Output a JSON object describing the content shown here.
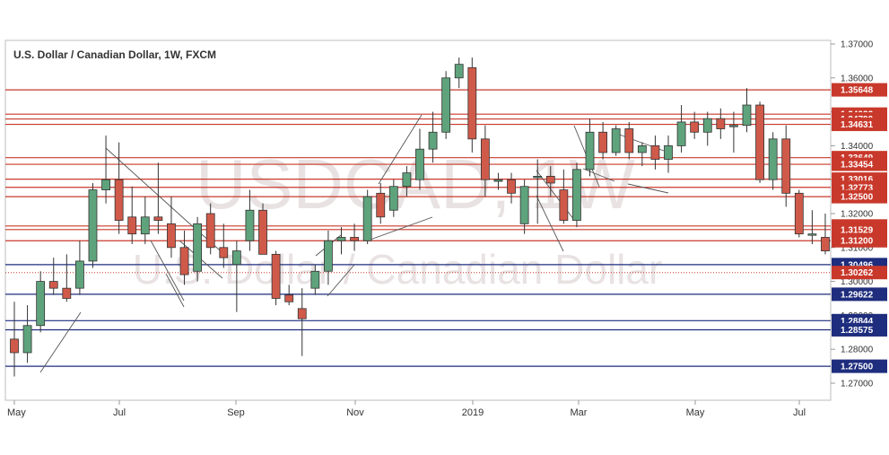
{
  "chart_data": {
    "type": "candlestick",
    "title": "U.S. Dollar / Canadian Dollar, 1W, FXCM",
    "watermark": {
      "symbol": "USDCAD, 1W",
      "name": "U.S. Dollar / Canadian Dollar"
    },
    "x_ticks": [
      "May",
      "Jul",
      "Sep",
      "Nov",
      "2019",
      "Mar",
      "May",
      "Jul"
    ],
    "y_ticks": [
      "1.37000",
      "1.36000",
      "1.35000",
      "1.34000",
      "1.33000",
      "1.32000",
      "1.31000",
      "1.30000",
      "1.29000",
      "1.28000",
      "1.27000"
    ],
    "ylim": [
      1.265,
      1.372
    ],
    "grid": false,
    "colors": {
      "up": "#5fa37c",
      "down": "#d05a4a",
      "resistance": "#c8392b",
      "support": "#1e2d7d",
      "trendline": "#555555"
    },
    "resistance_levels": [
      {
        "value": 1.35648,
        "label": "1.35648"
      },
      {
        "value": 1.34932,
        "label": "1.34932"
      },
      {
        "value": 1.3479,
        "label": "1.34790"
      },
      {
        "value": 1.34631,
        "label": "1.34631"
      },
      {
        "value": 1.33649,
        "label": "1.33649"
      },
      {
        "value": 1.33454,
        "label": "1.33454"
      },
      {
        "value": 1.33016,
        "label": "1.33016"
      },
      {
        "value": 1.32773,
        "label": "1.32773"
      },
      {
        "value": 1.325,
        "label": "1.32500"
      },
      {
        "value": 1.31635,
        "label": "1.31635"
      },
      {
        "value": 1.31529,
        "label": "1.31529"
      },
      {
        "value": 1.312,
        "label": "1.31200"
      }
    ],
    "support_levels": [
      {
        "value": 1.30496,
        "label": "1.30496"
      },
      {
        "value": 1.29622,
        "label": "1.29622"
      },
      {
        "value": 1.28844,
        "label": "1.28844"
      },
      {
        "value": 1.28575,
        "label": "1.28575"
      },
      {
        "value": 1.275,
        "label": "1.27500"
      }
    ],
    "current_price": {
      "value": 1.30262,
      "label": "1.30262"
    },
    "candles": [
      {
        "o": 1.283,
        "h": 1.294,
        "l": 1.272,
        "c": 1.279
      },
      {
        "o": 1.279,
        "h": 1.293,
        "l": 1.276,
        "c": 1.287
      },
      {
        "o": 1.287,
        "h": 1.303,
        "l": 1.285,
        "c": 1.3
      },
      {
        "o": 1.3,
        "h": 1.307,
        "l": 1.296,
        "c": 1.298
      },
      {
        "o": 1.298,
        "h": 1.308,
        "l": 1.294,
        "c": 1.295
      },
      {
        "o": 1.298,
        "h": 1.312,
        "l": 1.296,
        "c": 1.306
      },
      {
        "o": 1.306,
        "h": 1.329,
        "l": 1.304,
        "c": 1.327
      },
      {
        "o": 1.327,
        "h": 1.343,
        "l": 1.323,
        "c": 1.33
      },
      {
        "o": 1.33,
        "h": 1.341,
        "l": 1.314,
        "c": 1.318
      },
      {
        "o": 1.319,
        "h": 1.328,
        "l": 1.311,
        "c": 1.314
      },
      {
        "o": 1.314,
        "h": 1.325,
        "l": 1.311,
        "c": 1.319
      },
      {
        "o": 1.319,
        "h": 1.335,
        "l": 1.314,
        "c": 1.318
      },
      {
        "o": 1.317,
        "h": 1.325,
        "l": 1.307,
        "c": 1.31
      },
      {
        "o": 1.31,
        "h": 1.315,
        "l": 1.299,
        "c": 1.302
      },
      {
        "o": 1.303,
        "h": 1.319,
        "l": 1.3,
        "c": 1.317
      },
      {
        "o": 1.32,
        "h": 1.323,
        "l": 1.308,
        "c": 1.31
      },
      {
        "o": 1.31,
        "h": 1.317,
        "l": 1.304,
        "c": 1.307
      },
      {
        "o": 1.305,
        "h": 1.312,
        "l": 1.291,
        "c": 1.309
      },
      {
        "o": 1.312,
        "h": 1.327,
        "l": 1.309,
        "c": 1.321
      },
      {
        "o": 1.321,
        "h": 1.323,
        "l": 1.309,
        "c": 1.308
      },
      {
        "o": 1.308,
        "h": 1.309,
        "l": 1.293,
        "c": 1.295
      },
      {
        "o": 1.296,
        "h": 1.299,
        "l": 1.293,
        "c": 1.294
      },
      {
        "o": 1.292,
        "h": 1.298,
        "l": 1.278,
        "c": 1.289
      },
      {
        "o": 1.298,
        "h": 1.305,
        "l": 1.296,
        "c": 1.303
      },
      {
        "o": 1.303,
        "h": 1.315,
        "l": 1.299,
        "c": 1.312
      },
      {
        "o": 1.312,
        "h": 1.316,
        "l": 1.308,
        "c": 1.313
      },
      {
        "o": 1.313,
        "h": 1.317,
        "l": 1.309,
        "c": 1.312
      },
      {
        "o": 1.312,
        "h": 1.327,
        "l": 1.311,
        "c": 1.325
      },
      {
        "o": 1.326,
        "h": 1.329,
        "l": 1.317,
        "c": 1.319
      },
      {
        "o": 1.321,
        "h": 1.33,
        "l": 1.319,
        "c": 1.328
      },
      {
        "o": 1.328,
        "h": 1.334,
        "l": 1.325,
        "c": 1.332
      },
      {
        "o": 1.33,
        "h": 1.345,
        "l": 1.327,
        "c": 1.339
      },
      {
        "o": 1.339,
        "h": 1.35,
        "l": 1.335,
        "c": 1.344
      },
      {
        "o": 1.344,
        "h": 1.362,
        "l": 1.342,
        "c": 1.36
      },
      {
        "o": 1.36,
        "h": 1.366,
        "l": 1.357,
        "c": 1.364
      },
      {
        "o": 1.363,
        "h": 1.366,
        "l": 1.338,
        "c": 1.342
      },
      {
        "o": 1.342,
        "h": 1.346,
        "l": 1.325,
        "c": 1.33
      },
      {
        "o": 1.3295,
        "h": 1.332,
        "l": 1.327,
        "c": 1.33
      },
      {
        "o": 1.33,
        "h": 1.332,
        "l": 1.323,
        "c": 1.326
      },
      {
        "o": 1.317,
        "h": 1.33,
        "l": 1.314,
        "c": 1.328
      },
      {
        "o": 1.331,
        "h": 1.336,
        "l": 1.317,
        "c": 1.331
      },
      {
        "o": 1.331,
        "h": 1.334,
        "l": 1.325,
        "c": 1.329
      },
      {
        "o": 1.327,
        "h": 1.333,
        "l": 1.317,
        "c": 1.318
      },
      {
        "o": 1.318,
        "h": 1.335,
        "l": 1.316,
        "c": 1.333
      },
      {
        "o": 1.333,
        "h": 1.348,
        "l": 1.331,
        "c": 1.344
      },
      {
        "o": 1.344,
        "h": 1.347,
        "l": 1.336,
        "c": 1.338
      },
      {
        "o": 1.338,
        "h": 1.346,
        "l": 1.337,
        "c": 1.345
      },
      {
        "o": 1.345,
        "h": 1.347,
        "l": 1.336,
        "c": 1.338
      },
      {
        "o": 1.338,
        "h": 1.341,
        "l": 1.334,
        "c": 1.34
      },
      {
        "o": 1.34,
        "h": 1.343,
        "l": 1.333,
        "c": 1.336
      },
      {
        "o": 1.336,
        "h": 1.343,
        "l": 1.332,
        "c": 1.34
      },
      {
        "o": 1.34,
        "h": 1.352,
        "l": 1.338,
        "c": 1.347
      },
      {
        "o": 1.347,
        "h": 1.35,
        "l": 1.342,
        "c": 1.344
      },
      {
        "o": 1.344,
        "h": 1.35,
        "l": 1.34,
        "c": 1.348
      },
      {
        "o": 1.348,
        "h": 1.351,
        "l": 1.342,
        "c": 1.345
      },
      {
        "o": 1.346,
        "h": 1.35,
        "l": 1.338,
        "c": 1.346
      },
      {
        "o": 1.346,
        "h": 1.357,
        "l": 1.344,
        "c": 1.352
      },
      {
        "o": 1.352,
        "h": 1.353,
        "l": 1.329,
        "c": 1.33
      },
      {
        "o": 1.33,
        "h": 1.344,
        "l": 1.327,
        "c": 1.342
      },
      {
        "o": 1.342,
        "h": 1.346,
        "l": 1.322,
        "c": 1.326
      },
      {
        "o": 1.326,
        "h": 1.327,
        "l": 1.313,
        "c": 1.314
      },
      {
        "o": 1.314,
        "h": 1.321,
        "l": 1.311,
        "c": 1.314
      },
      {
        "o": 1.313,
        "h": 1.32,
        "l": 1.308,
        "c": 1.309
      }
    ]
  }
}
